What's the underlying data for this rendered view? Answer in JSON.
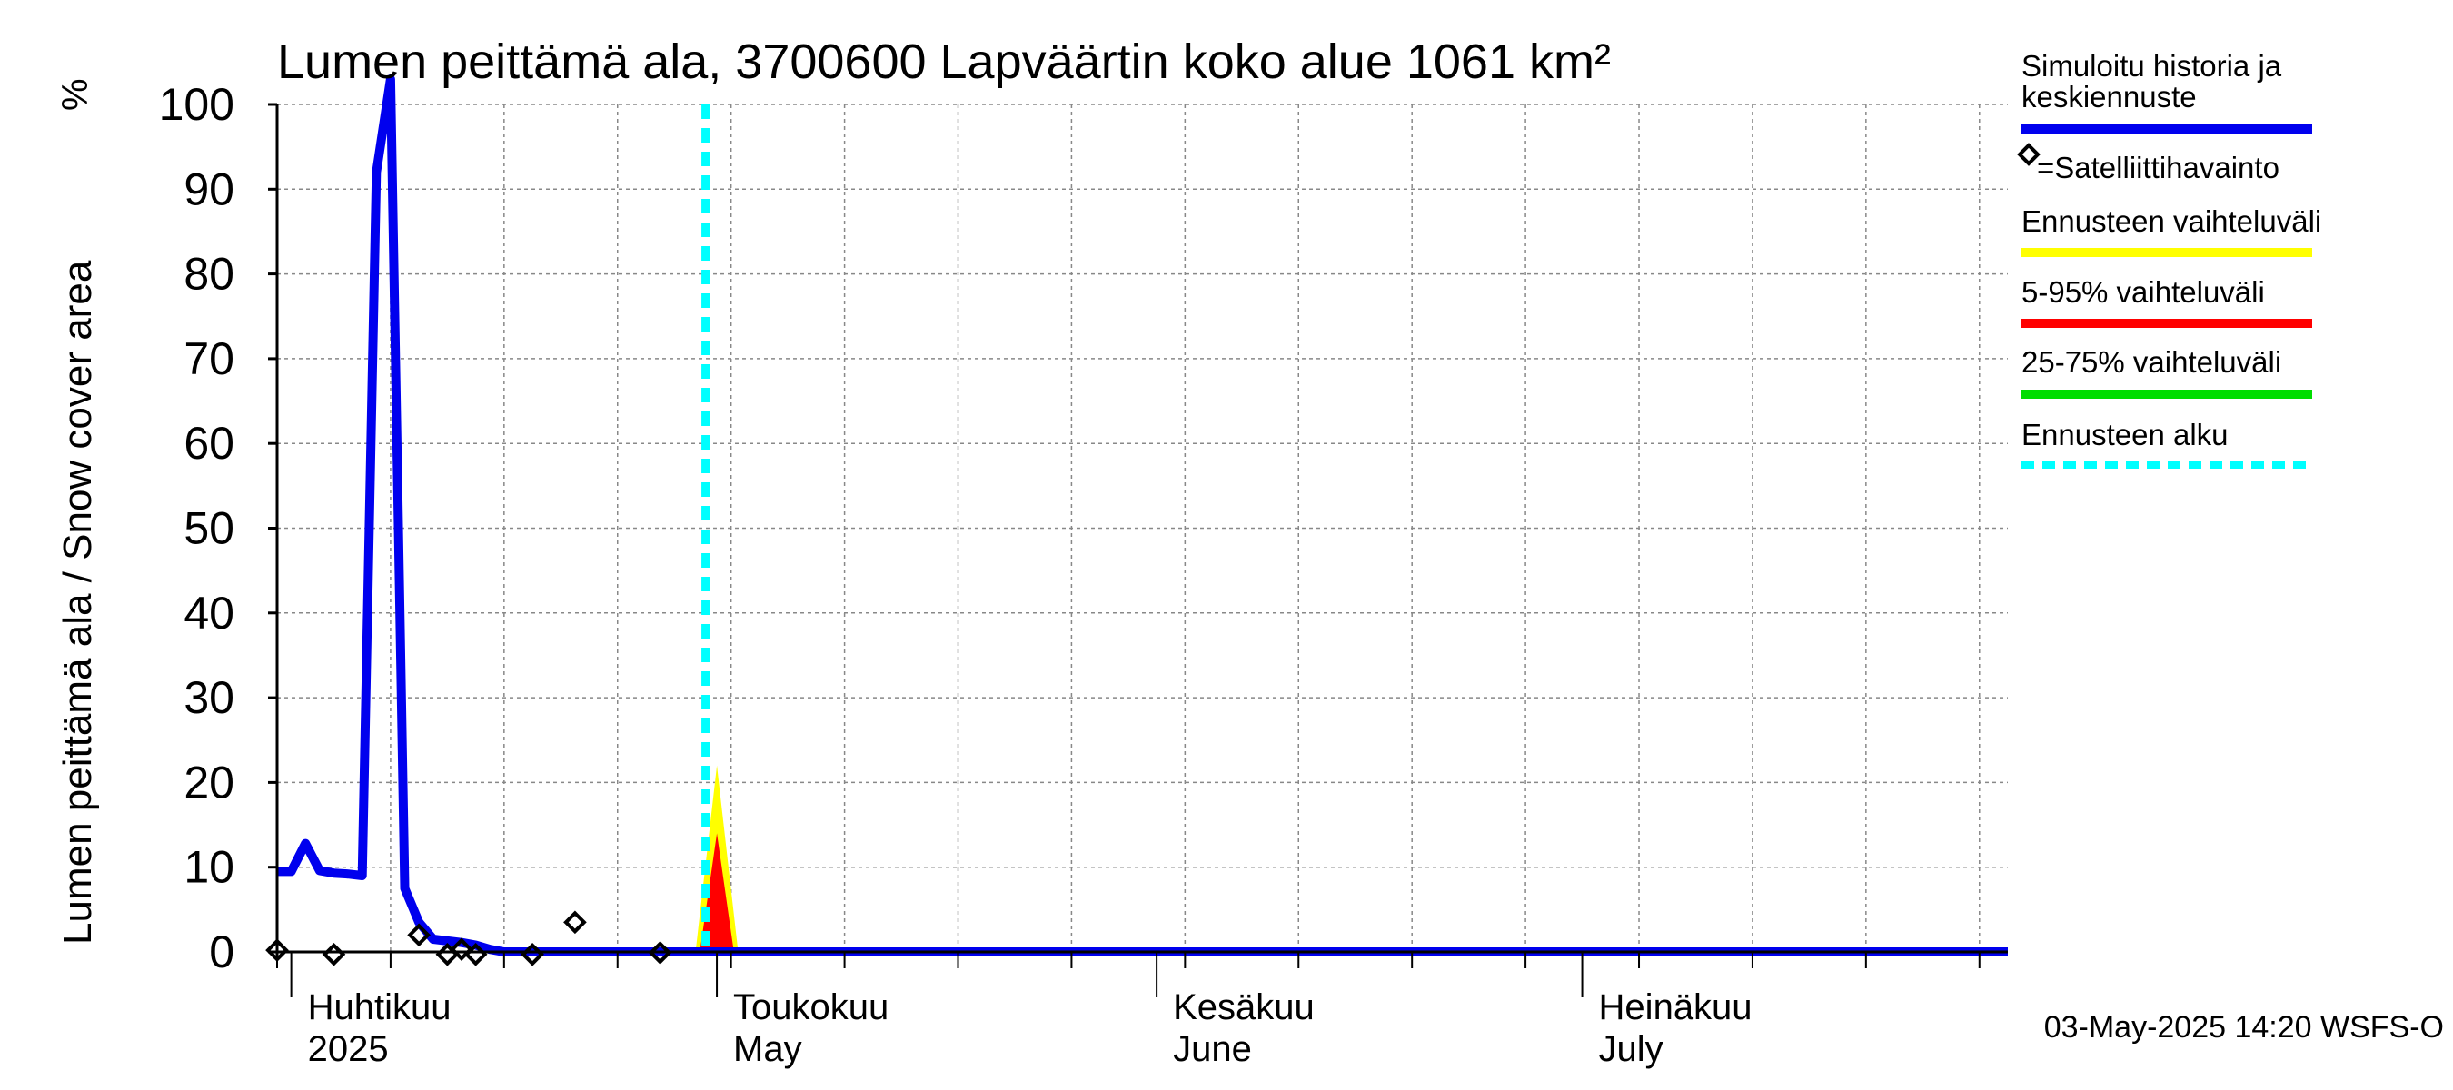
{
  "chart_data": {
    "type": "line",
    "title": "Lumen peittämä ala, 3700600 Lapväärtin koko alue 1061 km²",
    "ylabel": "Lumen peittämä ala / Snow cover area",
    "yunit": "%",
    "ylim": [
      0,
      100
    ],
    "yticks": [
      0,
      10,
      20,
      30,
      40,
      50,
      60,
      70,
      80,
      90,
      100
    ],
    "x_start": "2025-03-31",
    "x_end": "2025-07-31",
    "x_span_days": 122,
    "month_ticks": [
      {
        "label": "Huhtikuu",
        "sublabel": "2025",
        "day": 1
      },
      {
        "label": "Toukokuu",
        "sublabel": "May",
        "day": 31
      },
      {
        "label": "Kesäkuu",
        "sublabel": "June",
        "day": 62
      },
      {
        "label": "Heinäkuu",
        "sublabel": "July",
        "day": 92
      }
    ],
    "forecast_start_day": 30.2,
    "series": [
      {
        "name": "Simuloitu historia ja keskiennuste",
        "color": "#0000ee",
        "points": [
          [
            0,
            9.5
          ],
          [
            1,
            9.5
          ],
          [
            2,
            12.8
          ],
          [
            3,
            9.6
          ],
          [
            4,
            9.3
          ],
          [
            5,
            9.2
          ],
          [
            6,
            9.0
          ],
          [
            7,
            92
          ],
          [
            8,
            103
          ],
          [
            9,
            7.5
          ],
          [
            10,
            3.5
          ],
          [
            11,
            1.5
          ],
          [
            12,
            1.3
          ],
          [
            13,
            1.1
          ],
          [
            14,
            0.8
          ],
          [
            15,
            0.3
          ],
          [
            16,
            0
          ],
          [
            122,
            0
          ]
        ]
      }
    ],
    "satellite_observations": [
      [
        0,
        0.2
      ],
      [
        4,
        -0.3
      ],
      [
        10,
        2.0
      ],
      [
        12,
        -0.3
      ],
      [
        13,
        0.3
      ],
      [
        14,
        -0.3
      ],
      [
        18,
        -0.3
      ],
      [
        21,
        3.5
      ],
      [
        27,
        -0.1
      ]
    ],
    "bands": [
      {
        "name": "Ennusteen vaihteluväli",
        "color": "#ffff00",
        "points": [
          [
            29.5,
            0
          ],
          [
            31,
            22
          ],
          [
            32.5,
            0
          ]
        ]
      },
      {
        "name": "5-95% vaihteluväli",
        "color": "#ff0000",
        "points": [
          [
            29.8,
            0
          ],
          [
            31,
            14
          ],
          [
            32.2,
            0
          ]
        ]
      }
    ],
    "legend": [
      {
        "label": "Simuloitu historia ja keskiennuste",
        "color": "#0000ee",
        "style": "line"
      },
      {
        "label": "=Satelliittihavainto",
        "color": "#000000",
        "style": "marker"
      },
      {
        "label": "Ennusteen vaihteluväli",
        "color": "#ffff00",
        "style": "line"
      },
      {
        "label": "5-95% vaihteluväli",
        "color": "#ff0000",
        "style": "line"
      },
      {
        "label": "25-75% vaihteluväli",
        "color": "#00dd00",
        "style": "line"
      },
      {
        "label": "Ennusteen alku",
        "color": "#00ffff",
        "style": "dashed"
      }
    ],
    "forecast_start_color": "#00ffff",
    "footer": "03-May-2025 14:20 WSFS-O"
  }
}
